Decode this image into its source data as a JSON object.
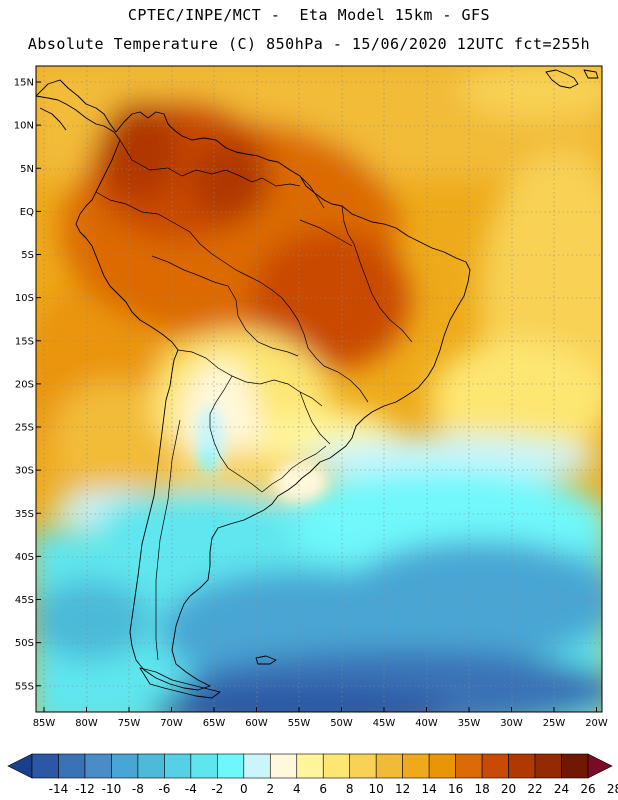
{
  "header": {
    "line1": "CPTEC/INPE/MCT -  Eta Model 15km - GFS",
    "line2": "Absolute Temperature (C) 850hPa - 15/06/2020 12UTC fct=255h"
  },
  "axes": {
    "lat_labels": [
      "15N",
      "10N",
      "5N",
      "EQ",
      "5S",
      "10S",
      "15S",
      "20S",
      "25S",
      "30S",
      "35S",
      "40S",
      "45S",
      "50S",
      "55S"
    ],
    "lat_values": [
      15,
      10,
      5,
      0,
      -5,
      -10,
      -15,
      -20,
      -25,
      -30,
      -35,
      -40,
      -45,
      -50,
      -55
    ],
    "lon_labels": [
      "85W",
      "80W",
      "75W",
      "70W",
      "65W",
      "60W",
      "55W",
      "50W",
      "45W",
      "40W",
      "35W",
      "30W",
      "25W",
      "20W"
    ],
    "lon_values": [
      -85,
      -80,
      -75,
      -70,
      -65,
      -60,
      -55,
      -50,
      -45,
      -40,
      -35,
      -30,
      -25,
      -20
    ]
  },
  "colorbar": {
    "labels": [
      "-14",
      "-12",
      "-10",
      "-8",
      "-6",
      "-4",
      "-2",
      "0",
      "2",
      "4",
      "6",
      "8",
      "10",
      "12",
      "14",
      "16",
      "18",
      "20",
      "22",
      "24",
      "26",
      "28"
    ],
    "colors": [
      "#1a3f8c",
      "#2a58a4",
      "#3a72b6",
      "#4a8cc6",
      "#49a6d4",
      "#4cbad8",
      "#56d0e4",
      "#5ee6ee",
      "#6ff8fb",
      "#c9f5fb",
      "#fff8dc",
      "#fff59a",
      "#fde672",
      "#f8d155",
      "#f2bb37",
      "#eeaa1a",
      "#ea9508",
      "#dc6a06",
      "#c94a04",
      "#b03902",
      "#932a02",
      "#701802",
      "#7a0b26"
    ]
  }
}
